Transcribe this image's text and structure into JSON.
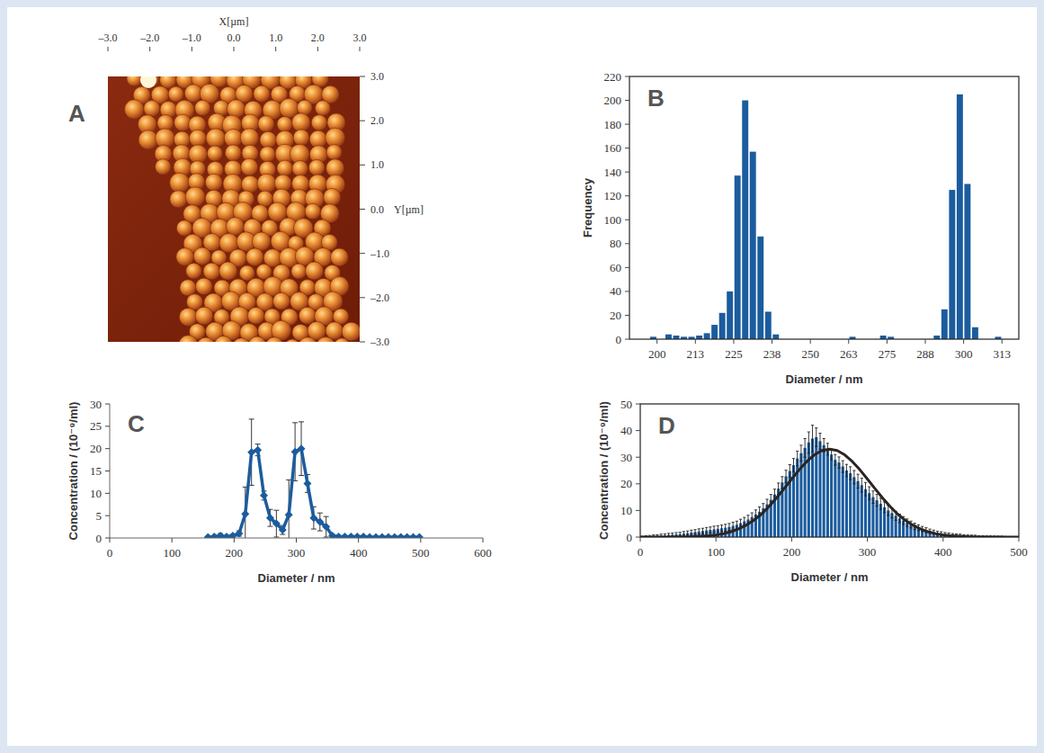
{
  "chart_data": [
    {
      "type": "image",
      "panel": "A",
      "xlabel": "X[µm]",
      "ylabel": "Y[µm]",
      "xlim": [
        -3,
        3
      ],
      "ylim": [
        -3,
        3
      ],
      "xticks": [
        {
          "value": -3,
          "label": "–3.0"
        },
        {
          "value": -2,
          "label": "–2.0"
        },
        {
          "value": -1,
          "label": "–1.0"
        },
        {
          "value": 0,
          "label": "0.0"
        },
        {
          "value": 1,
          "label": "1.0"
        },
        {
          "value": 2,
          "label": "2.0"
        },
        {
          "value": 3,
          "label": "3.0"
        }
      ],
      "yticks": [
        {
          "value": 3,
          "label": "3.0"
        },
        {
          "value": 2,
          "label": "2.0"
        },
        {
          "value": 1,
          "label": "1.0"
        },
        {
          "value": 0,
          "label": "0.0"
        },
        {
          "value": -1,
          "label": "–1.0"
        },
        {
          "value": -2,
          "label": "–2.0"
        },
        {
          "value": -3,
          "label": "–3.0"
        }
      ]
    },
    {
      "type": "histogram",
      "panel": "B",
      "xlabel": "Diameter / nm",
      "ylabel": "Frequency",
      "color": "#1b5c9e",
      "bins": [
        197.5,
        200,
        202.5,
        205,
        207.5,
        210,
        212.5,
        215,
        217.5,
        220,
        222.5,
        225,
        227.5,
        230,
        232.5,
        235,
        237.5,
        240,
        242.5,
        245,
        247.5,
        250,
        252.5,
        255,
        257.5,
        260,
        262.5,
        265,
        267.5,
        270,
        272.5,
        275,
        277.5,
        280,
        282.5,
        285,
        287.5,
        290,
        292.5,
        295,
        297.5,
        300,
        302.5,
        305,
        307.5,
        310,
        312.5,
        315,
        317.5
      ],
      "values": [
        2,
        0,
        4,
        3,
        2,
        2,
        3,
        5,
        12,
        22,
        40,
        137,
        200,
        157,
        86,
        23,
        4,
        0,
        0,
        0,
        0,
        0,
        0,
        0,
        0,
        0,
        2,
        0,
        0,
        0,
        3,
        2,
        0,
        0,
        0,
        0,
        0,
        3,
        25,
        125,
        205,
        130,
        10,
        0,
        0,
        2,
        0,
        0
      ],
      "xlim": [
        191,
        318
      ],
      "ylim": [
        0,
        220
      ],
      "xticks": [
        200,
        {
          "value": 212.5,
          "label": "213"
        },
        225,
        {
          "value": 237.5,
          "label": "238"
        },
        250,
        {
          "value": 262.5,
          "label": "263"
        },
        275,
        {
          "value": 287.5,
          "label": "288"
        },
        300,
        {
          "value": 312.5,
          "label": "313"
        }
      ],
      "yticks": [
        0,
        20,
        40,
        60,
        80,
        100,
        120,
        140,
        160,
        180,
        200,
        220
      ]
    },
    {
      "type": "line",
      "panel": "C",
      "xlabel": "Diameter / nm",
      "ylabel": "Concentration / (10⁻⁹/ml)",
      "x": [
        158,
        168,
        178,
        188,
        198,
        208,
        218,
        228,
        238,
        248,
        258,
        268,
        278,
        288,
        298,
        308,
        318,
        328,
        338,
        348,
        358,
        368,
        378,
        388,
        398,
        408,
        418,
        428,
        438,
        448,
        458,
        468,
        478,
        488,
        498
      ],
      "series": [
        {
          "color": "#1b5c9e",
          "marker": "diamond",
          "values": [
            0.2,
            0.3,
            0.5,
            0.3,
            0.5,
            1.0,
            5.4,
            19.2,
            19.7,
            9.5,
            4.5,
            3.2,
            1.8,
            5.2,
            19.3,
            20.0,
            12.2,
            4.5,
            3.6,
            2.5,
            0.5,
            0.3,
            0.3,
            0.3,
            0.3,
            0.3,
            0.2,
            0.2,
            0.2,
            0.2,
            0.2,
            0.2,
            0.2,
            0.2,
            0.2
          ],
          "errors": [
            0.1,
            0.1,
            0.5,
            0.2,
            0.3,
            0.6,
            6.0,
            7.4,
            1.3,
            1.0,
            1.9,
            3.0,
            1.0,
            7.8,
            6.5,
            6.0,
            2.0,
            2.5,
            2.0,
            2.3,
            0.3,
            0.1,
            0.1,
            0.1,
            0.1,
            0.1,
            0.1,
            0.1,
            0.1,
            0.1,
            0.1,
            0.1,
            0.1,
            0.1,
            0.1
          ]
        }
      ],
      "xlim": [
        0,
        600
      ],
      "ylim": [
        0,
        30
      ],
      "xticks": [
        0,
        100,
        200,
        300,
        400,
        500,
        600
      ],
      "yticks": [
        0,
        5,
        10,
        15,
        20,
        25,
        30
      ]
    },
    {
      "type": "histogram",
      "panel": "D",
      "xlabel": "Diameter / nm",
      "ylabel": "Concentration / (10⁻⁹/ml)",
      "bins": [
        0,
        5,
        10,
        15,
        20,
        25,
        30,
        35,
        40,
        45,
        50,
        55,
        60,
        65,
        70,
        75,
        80,
        85,
        90,
        95,
        100,
        105,
        110,
        115,
        120,
        125,
        130,
        135,
        140,
        145,
        150,
        155,
        160,
        165,
        170,
        175,
        180,
        185,
        190,
        195,
        200,
        205,
        210,
        215,
        220,
        225,
        230,
        235,
        240,
        245,
        250,
        255,
        260,
        265,
        270,
        275,
        280,
        285,
        290,
        295,
        300,
        305,
        310,
        315,
        320,
        325,
        330,
        335,
        340,
        345,
        350,
        355,
        360,
        365,
        370,
        375,
        380,
        385,
        390,
        395,
        400,
        405,
        410,
        415,
        420,
        425,
        430,
        435,
        440,
        445,
        450,
        455,
        460,
        465,
        470,
        475,
        480,
        485,
        490,
        495,
        500
      ],
      "series": [
        {
          "type": "bar",
          "color": "#1b5c9e",
          "values": [
            0.1,
            0.2,
            0.3,
            0.4,
            0.5,
            0.6,
            0.7,
            0.8,
            0.9,
            1.0,
            1.1,
            1.3,
            1.5,
            1.7,
            1.9,
            2.1,
            2.3,
            2.5,
            2.7,
            2.9,
            3.1,
            3.3,
            3.5,
            3.8,
            4.2,
            4.6,
            5.2,
            5.9,
            6.6,
            7.5,
            8.5,
            9.5,
            10.8,
            12.3,
            14.0,
            16.0,
            18.2,
            20.5,
            22.8,
            24.8,
            27.0,
            29.5,
            31.5,
            33.5,
            35.5,
            37.0,
            37.5,
            36.0,
            34.5,
            33.0,
            31.0,
            29.0,
            28.0,
            26.5,
            25.0,
            24.0,
            22.5,
            21.0,
            19.5,
            18.0,
            16.5,
            15.0,
            13.8,
            12.5,
            11.2,
            10.0,
            9.0,
            8.0,
            7.0,
            6.2,
            5.4,
            4.7,
            4.0,
            3.5,
            3.0,
            2.6,
            2.2,
            1.9,
            1.6,
            1.4,
            1.2,
            1.0,
            0.9,
            0.8,
            0.7,
            0.6,
            0.5,
            0.45,
            0.4,
            0.35,
            0.3,
            0.27,
            0.24,
            0.21,
            0.18,
            0.15,
            0.12,
            0.1,
            0.08,
            0.05
          ],
          "errors": [
            0.2,
            0.3,
            0.3,
            0.4,
            0.4,
            0.5,
            0.5,
            0.6,
            0.6,
            0.7,
            0.7,
            0.8,
            0.8,
            0.9,
            0.9,
            1.0,
            1.0,
            1.1,
            1.1,
            1.2,
            1.2,
            1.2,
            1.3,
            1.3,
            1.4,
            1.4,
            1.5,
            1.5,
            1.6,
            1.6,
            1.7,
            1.8,
            1.8,
            1.9,
            2.0,
            2.0,
            2.1,
            2.2,
            2.3,
            2.4,
            2.5,
            2.8,
            3.0,
            3.5,
            4.0,
            5.0,
            3.5,
            3.0,
            2.5,
            2.2,
            2.0,
            2.0,
            2.1,
            2.2,
            2.3,
            2.4,
            2.5,
            2.6,
            2.6,
            2.5,
            2.4,
            2.3,
            2.2,
            2.1,
            2.0,
            1.9,
            1.8,
            1.7,
            1.6,
            1.5,
            1.4,
            1.3,
            1.2,
            1.1,
            1.0,
            0.9,
            0.8,
            0.7,
            0.6,
            0.6,
            0.5,
            0.5,
            0.4,
            0.4,
            0.4,
            0.3,
            0.3,
            0.3,
            0.3,
            0.2,
            0.2,
            0.2,
            0.2,
            0.2,
            0.2,
            0.2,
            0.1,
            0.1,
            0.1,
            0.1
          ]
        },
        {
          "type": "line",
          "color": "#2b2420",
          "x": [
            0,
            10,
            20,
            30,
            40,
            50,
            60,
            70,
            80,
            90,
            100,
            110,
            120,
            130,
            140,
            150,
            160,
            170,
            180,
            190,
            200,
            210,
            220,
            230,
            240,
            250,
            260,
            270,
            280,
            290,
            300,
            310,
            320,
            330,
            340,
            350,
            360,
            370,
            380,
            390,
            400,
            410,
            420,
            430,
            440,
            450,
            460,
            470,
            480,
            490,
            500
          ],
          "values": [
            0,
            0,
            0,
            0.02,
            0.03,
            0.04,
            0.1,
            0.15,
            0.3,
            0.5,
            0.8,
            1.3,
            2.0,
            3.1,
            4.5,
            6.3,
            8.6,
            11.5,
            14.7,
            18.2,
            21.8,
            25.3,
            28.4,
            30.9,
            32.5,
            33,
            32.5,
            30.9,
            28.4,
            25.3,
            21.8,
            18.2,
            14.7,
            11.5,
            8.6,
            6.3,
            4.5,
            3.1,
            2.0,
            1.3,
            0.8,
            0.5,
            0.3,
            0.15,
            0.1,
            0.04,
            0.03,
            0.02,
            0,
            0,
            0
          ]
        }
      ],
      "xlim": [
        0,
        500
      ],
      "ylim": [
        0,
        50
      ],
      "xticks": [
        0,
        100,
        200,
        300,
        400,
        500
      ],
      "yticks": [
        0,
        10,
        20,
        30,
        40,
        50
      ]
    }
  ]
}
